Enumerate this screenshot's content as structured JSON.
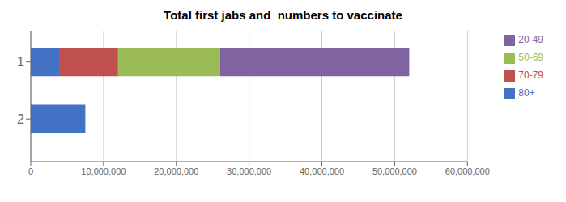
{
  "chart_data": {
    "type": "bar",
    "title": "Total first jabs and  numbers to vaccinate",
    "orientation": "horizontal",
    "stacked": true,
    "categories": [
      1,
      2
    ],
    "series": [
      {
        "name": "80+",
        "color": "#4472C4",
        "values": [
          4000000,
          7500000
        ]
      },
      {
        "name": "70-79",
        "color": "#C0504D",
        "values": [
          8000000,
          0
        ]
      },
      {
        "name": "50-69",
        "color": "#9BBB59",
        "values": [
          14000000,
          0
        ]
      },
      {
        "name": "20-49",
        "color": "#8064A2",
        "values": [
          26000000,
          0
        ]
      }
    ],
    "xlim": [
      0,
      60000000
    ],
    "xticks": [
      0,
      {
        "value": 10000000,
        "label": "10,000,000"
      },
      {
        "value": 20000000,
        "label": "20,000,000"
      },
      {
        "value": 30000000,
        "label": "30,000,000"
      },
      {
        "value": 40000000,
        "label": "40,000,000"
      },
      {
        "value": 50000000,
        "label": "50,000,000"
      },
      {
        "value": 60000000,
        "label": "60,000,000"
      }
    ],
    "ylim": [
      0.45,
      2.75
    ],
    "yticks": [
      1,
      2
    ],
    "grid": true,
    "legend": "right"
  }
}
